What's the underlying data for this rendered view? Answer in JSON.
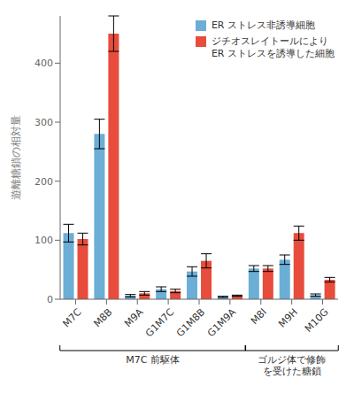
{
  "chart_data": {
    "type": "bar",
    "categories": [
      "M7C",
      "M8B",
      "M9A",
      "G1M7C",
      "G1M8B",
      "G1M9A",
      "M8I",
      "M9H",
      "M10G"
    ],
    "series": [
      {
        "name": "ER ストレス非誘導細胞",
        "color": "#6baed6",
        "values": [
          112,
          280,
          6,
          17,
          47,
          4,
          52,
          67,
          7
        ],
        "errors": [
          15,
          25,
          2,
          4,
          8,
          1,
          5,
          8,
          2
        ]
      },
      {
        "name": "ジチオスレイトールにより\nER ストレスを誘導した細胞",
        "color": "#e74c3c",
        "values": [
          102,
          450,
          10,
          14,
          65,
          6,
          52,
          112,
          33
        ],
        "errors": [
          10,
          30,
          3,
          3,
          12,
          1,
          5,
          12,
          4
        ]
      }
    ],
    "ylabel": "遊離糖鎖の相対量",
    "ylim": [
      0,
      480
    ],
    "yticks": [
      0,
      100,
      200,
      300,
      400
    ],
    "legend": "upper right",
    "grid": false,
    "annotations": [
      {
        "text": "M7C 前駆体",
        "from": "M7C",
        "to": "G1M9A"
      },
      {
        "text": "ゴルジ体で修飾\nを受けた糖鎖",
        "from": "M8I",
        "to": "M10G"
      }
    ]
  }
}
